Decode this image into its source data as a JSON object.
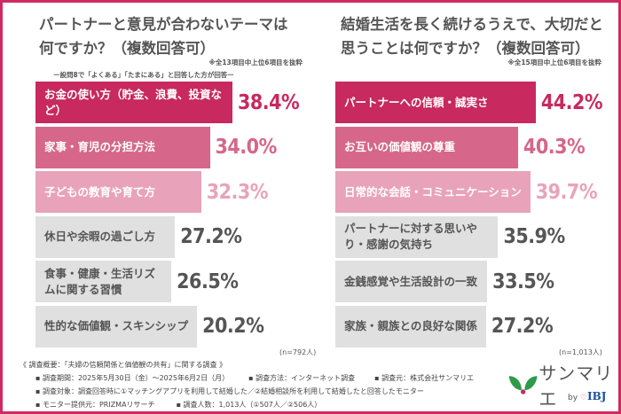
{
  "colors": {
    "rank1": "#c8295e",
    "rank2": "#d6668a",
    "rank3": "#e8a3ba",
    "other": "#e0e0e0",
    "border": "#d02a63"
  },
  "chart_data": [
    {
      "type": "bar",
      "orientation": "horizontal",
      "title_line1": "パートナーと意見が合わないテーマは",
      "title_line2": "何ですか？（複数回答可）",
      "note": "※全13項目中上位6項目を抜粋",
      "subnote": "ー設問8で「よくある」「たまにある」と回答した方が回答ー",
      "categories": [
        "お金の使い方（貯金、浪費、投資など）",
        "家事・育児の分担方法",
        "子どもの教育や育て方",
        "休日や余暇の過ごし方",
        "食事・健康・生活リズムに関する習慣",
        "性的な価値観・スキンシップ"
      ],
      "values": [
        38.4,
        34.0,
        32.3,
        27.2,
        26.5,
        20.2
      ],
      "labels": [
        "38.4%",
        "34.0%",
        "32.3%",
        "27.2%",
        "26.5%",
        "20.2%"
      ],
      "sample": "(n=792人)"
    },
    {
      "type": "bar",
      "orientation": "horizontal",
      "title_line1": "結婚生活を長く続けるうえで、大切だと",
      "title_line2": "思うことは何ですか？（複数回答可）",
      "note": "※全15項目中上位6項目を抜粋",
      "categories": [
        "パートナーへの信頼・誠実さ",
        "お互いの価値観の尊重",
        "日常的な会話・コミュニケーション",
        "パートナーに対する思いやり・感謝の気持ち",
        "金銭感覚や生活設計の一致",
        "家族・親族との良好な関係"
      ],
      "values": [
        44.2,
        40.3,
        39.7,
        35.9,
        33.5,
        27.2
      ],
      "labels": [
        "44.2%",
        "40.3%",
        "39.7%",
        "35.9%",
        "33.5%",
        "27.2%"
      ],
      "sample": "(n=1,013人)"
    }
  ],
  "footer": {
    "heading": "《 調査概要：「夫婦の信頼関係と価値観の共有」に関する調査 》",
    "period": "▪ 調査期間：2025年5月30日（金）～2025年6月2日（月）",
    "method": "▪ 調査方法：インターネット調査",
    "org": "▪ 調査元：株式会社サンマリエ",
    "target": "▪ 調査対象：調査回答時に①マッチングアプリを利用して結婚した／②結婚相談所を利用して結婚したと回答したモニター",
    "provider": "▪ モニター提供元：PRIZMAリサーチ",
    "count": "▪ 調査人数：1,013人（①507人／②506人）"
  },
  "logo": {
    "name": "サンマリエ",
    "by": "by",
    "brand": "IBJ",
    "icon": "leaf-logo-icon"
  }
}
